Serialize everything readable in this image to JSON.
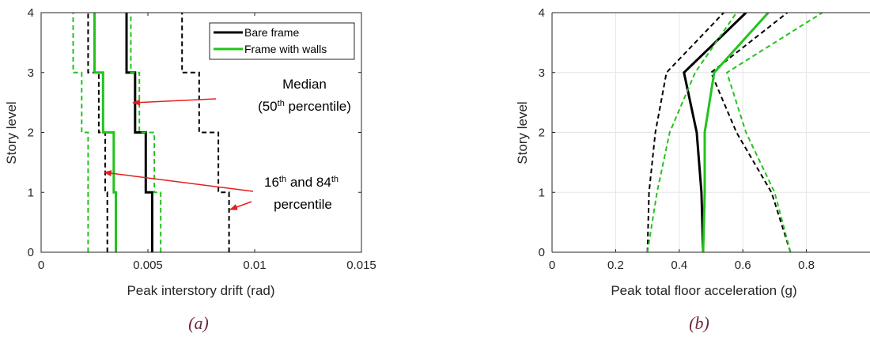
{
  "colors": {
    "bare": "#000000",
    "walls": "#22c41c",
    "arrow": "#e61e1e",
    "caption": "#6b2a3a",
    "grid": "#e6e6e6"
  },
  "legend": [
    "Bare frame",
    "Frame with walls"
  ],
  "annotations": {
    "median_line1": "Median",
    "median_line2_prefix": "(50",
    "median_line2_sup": "th",
    "median_line2_suffix": " percentile)",
    "pct_line1_a": "16",
    "pct_line1_a_sup": "th",
    "pct_line1_b": " and 84",
    "pct_line1_b_sup": "th",
    "pct_line2": "percentile"
  },
  "chart_data": [
    {
      "type": "line",
      "panel_caption": "(a)",
      "xlabel": "Peak interstory drift (rad)",
      "ylabel": "Story level",
      "xlim": [
        0,
        0.015
      ],
      "ylim": [
        0,
        4
      ],
      "xticks": [
        0,
        0.005,
        0.01,
        0.015
      ],
      "xtick_labels": [
        "0",
        "0.005",
        "0.01",
        "0.015"
      ],
      "yticks": [
        0,
        1,
        2,
        3,
        4
      ],
      "ytick_labels": [
        "0",
        "1",
        "2",
        "3",
        "4"
      ],
      "grid": false,
      "legend_position": "top-right",
      "step": true,
      "series": [
        {
          "name": "Bare frame",
          "stat": "median",
          "style": "solid",
          "color": "#000000",
          "x": [
            0.0052,
            0.0049,
            0.0044,
            0.004
          ],
          "y": [
            [
              0,
              1
            ],
            [
              1,
              2
            ],
            [
              2,
              3
            ],
            [
              3,
              4
            ]
          ]
        },
        {
          "name": "Bare frame",
          "stat": "16th",
          "style": "dashed",
          "color": "#000000",
          "x": [
            0.0031,
            0.003,
            0.0027,
            0.0022
          ],
          "y": [
            [
              0,
              1
            ],
            [
              1,
              2
            ],
            [
              2,
              3
            ],
            [
              3,
              4
            ]
          ]
        },
        {
          "name": "Bare frame",
          "stat": "84th",
          "style": "dashed",
          "color": "#000000",
          "x": [
            0.0088,
            0.0083,
            0.0074,
            0.0066
          ],
          "y": [
            [
              0,
              1
            ],
            [
              1,
              2
            ],
            [
              2,
              3
            ],
            [
              3,
              4
            ]
          ]
        },
        {
          "name": "Frame with walls",
          "stat": "median",
          "style": "solid",
          "color": "#22c41c",
          "x": [
            0.0035,
            0.0034,
            0.0029,
            0.0025
          ],
          "y": [
            [
              0,
              1
            ],
            [
              1,
              2
            ],
            [
              2,
              3
            ],
            [
              3,
              4
            ]
          ]
        },
        {
          "name": "Frame with walls",
          "stat": "16th",
          "style": "dashed",
          "color": "#22c41c",
          "x": [
            0.0022,
            0.0022,
            0.0019,
            0.0015
          ],
          "y": [
            [
              0,
              1
            ],
            [
              1,
              2
            ],
            [
              2,
              3
            ],
            [
              3,
              4
            ]
          ]
        },
        {
          "name": "Frame with walls",
          "stat": "84th",
          "style": "dashed",
          "color": "#22c41c",
          "x": [
            0.0056,
            0.0053,
            0.0046,
            0.0042
          ],
          "y": [
            [
              0,
              1
            ],
            [
              1,
              2
            ],
            [
              2,
              3
            ],
            [
              3,
              4
            ]
          ]
        }
      ]
    },
    {
      "type": "line",
      "panel_caption": "(b)",
      "xlabel": "Peak total floor acceleration (g)",
      "ylabel": "Story level",
      "xlim": [
        0,
        1
      ],
      "ylim": [
        0,
        4
      ],
      "xticks": [
        0,
        0.2,
        0.4,
        0.6,
        0.8
      ],
      "xtick_labels": [
        "0",
        "0.2",
        "0.4",
        "0.6",
        "0.8"
      ],
      "yticks": [
        0,
        1,
        2,
        3,
        4
      ],
      "ytick_labels": [
        "0",
        "1",
        "2",
        "3",
        "4"
      ],
      "grid": true,
      "series": [
        {
          "name": "Bare frame",
          "stat": "median",
          "style": "solid",
          "color": "#000000",
          "x": [
            0.475,
            0.47,
            0.455,
            0.415,
            0.61
          ],
          "y": [
            0,
            1,
            2,
            3,
            4
          ]
        },
        {
          "name": "Bare frame",
          "stat": "16th",
          "style": "dashed",
          "color": "#000000",
          "x": [
            0.3,
            0.305,
            0.325,
            0.36,
            0.54
          ],
          "y": [
            0,
            1,
            2,
            3,
            4
          ]
        },
        {
          "name": "Bare frame",
          "stat": "84th",
          "style": "dashed",
          "color": "#000000",
          "x": [
            0.75,
            0.69,
            0.58,
            0.5,
            0.74
          ],
          "y": [
            0,
            1,
            2,
            3,
            4
          ]
        },
        {
          "name": "Frame with walls",
          "stat": "median",
          "style": "solid",
          "color": "#22c41c",
          "x": [
            0.475,
            0.48,
            0.48,
            0.51,
            0.68
          ],
          "y": [
            0,
            1,
            2,
            3,
            4
          ]
        },
        {
          "name": "Frame with walls",
          "stat": "16th",
          "style": "dashed",
          "color": "#22c41c",
          "x": [
            0.3,
            0.33,
            0.37,
            0.45,
            0.58
          ],
          "y": [
            0,
            1,
            2,
            3,
            4
          ]
        },
        {
          "name": "Frame with walls",
          "stat": "84th",
          "style": "dashed",
          "color": "#22c41c",
          "x": [
            0.75,
            0.7,
            0.61,
            0.55,
            0.85
          ],
          "y": [
            0,
            1,
            2,
            3,
            4
          ]
        }
      ]
    }
  ]
}
